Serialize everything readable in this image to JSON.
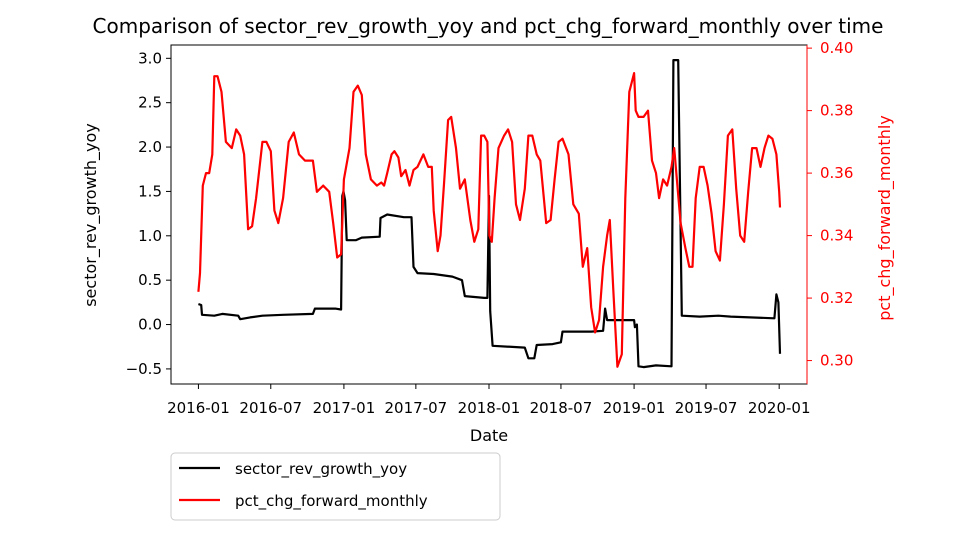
{
  "chart_data": {
    "type": "line",
    "title": "Comparison of sector_rev_growth_yoy and pct_chg_forward_monthly over time",
    "xlabel": "Date",
    "ylabel_left": "sector_rev_growth_yoy",
    "ylabel_right": "pct_chg_forward_monthly",
    "x_ticks": [
      "2016-01",
      "2016-07",
      "2017-01",
      "2017-07",
      "2018-01",
      "2018-07",
      "2019-01",
      "2019-07",
      "2020-01"
    ],
    "y_left_ticks": [
      "3.0",
      "2.5",
      "2.0",
      "1.5",
      "1.0",
      "0.5",
      "0.0",
      "−0.5"
    ],
    "y_right_ticks": [
      "0.40",
      "0.38",
      "0.36",
      "0.34",
      "0.32",
      "0.30"
    ],
    "ylim_left": [
      -0.67,
      3.15
    ],
    "ylim_right": [
      0.2925,
      0.401
    ],
    "xlim": [
      "2015-10-24",
      "2020-03-11"
    ],
    "grid": false,
    "legend_placement": "below-left",
    "colors": {
      "left": "#000000",
      "right": "#ff0000"
    },
    "series": [
      {
        "name": "sector_rev_growth_yoy",
        "axis": "left",
        "color": "#000000",
        "points": [
          [
            "2016-01-01",
            0.23
          ],
          [
            "2016-01-08",
            0.22
          ],
          [
            "2016-01-10",
            0.11
          ],
          [
            "2016-02-10",
            0.1
          ],
          [
            "2016-03-01",
            0.12
          ],
          [
            "2016-04-10",
            0.1
          ],
          [
            "2016-04-15",
            0.06
          ],
          [
            "2016-05-10",
            0.08
          ],
          [
            "2016-06-10",
            0.1
          ],
          [
            "2016-08-01",
            0.11
          ],
          [
            "2016-10-15",
            0.12
          ],
          [
            "2016-10-20",
            0.18
          ],
          [
            "2016-12-10",
            0.18
          ],
          [
            "2016-12-25",
            0.17
          ],
          [
            "2016-12-28",
            1.45
          ],
          [
            "2016-12-31",
            1.5
          ],
          [
            "2017-01-04",
            1.4
          ],
          [
            "2017-01-08",
            0.95
          ],
          [
            "2017-01-31",
            0.95
          ],
          [
            "2017-02-15",
            0.98
          ],
          [
            "2017-04-01",
            0.99
          ],
          [
            "2017-04-03",
            1.2
          ],
          [
            "2017-04-20",
            1.24
          ],
          [
            "2017-06-01",
            1.21
          ],
          [
            "2017-06-20",
            1.21
          ],
          [
            "2017-06-25",
            0.65
          ],
          [
            "2017-07-05",
            0.58
          ],
          [
            "2017-08-15",
            0.57
          ],
          [
            "2017-10-01",
            0.54
          ],
          [
            "2017-10-25",
            0.5
          ],
          [
            "2017-11-01",
            0.32
          ],
          [
            "2017-12-20",
            0.3
          ],
          [
            "2017-12-28",
            0.3
          ],
          [
            "2018-01-01",
            1.45
          ],
          [
            "2018-01-04",
            0.15
          ],
          [
            "2018-01-10",
            -0.24
          ],
          [
            "2018-04-01",
            -0.26
          ],
          [
            "2018-04-10",
            -0.38
          ],
          [
            "2018-04-25",
            -0.38
          ],
          [
            "2018-05-01",
            -0.23
          ],
          [
            "2018-06-10",
            -0.22
          ],
          [
            "2018-07-01",
            -0.2
          ],
          [
            "2018-07-05",
            -0.08
          ],
          [
            "2018-09-15",
            -0.08
          ],
          [
            "2018-10-15",
            -0.07
          ],
          [
            "2018-10-20",
            0.18
          ],
          [
            "2018-10-25",
            0.05
          ],
          [
            "2019-01-01",
            0.05
          ],
          [
            "2019-01-03",
            -0.03
          ],
          [
            "2019-01-08",
            0.0
          ],
          [
            "2019-01-12",
            -0.47
          ],
          [
            "2019-01-25",
            -0.48
          ],
          [
            "2019-02-25",
            -0.46
          ],
          [
            "2019-04-05",
            -0.47
          ],
          [
            "2019-04-10",
            2.98
          ],
          [
            "2019-04-22",
            2.98
          ],
          [
            "2019-05-01",
            0.1
          ],
          [
            "2019-06-15",
            0.09
          ],
          [
            "2019-08-01",
            0.1
          ],
          [
            "2019-09-01",
            0.09
          ],
          [
            "2019-12-20",
            0.07
          ],
          [
            "2019-12-25",
            0.34
          ],
          [
            "2019-12-30",
            0.25
          ],
          [
            "2020-01-03",
            -0.33
          ]
        ]
      },
      {
        "name": "pct_chg_forward_monthly",
        "axis": "right",
        "color": "#ff0000",
        "points": [
          [
            "2016-01-01",
            0.322
          ],
          [
            "2016-01-05",
            0.328
          ],
          [
            "2016-01-12",
            0.356
          ],
          [
            "2016-01-20",
            0.36
          ],
          [
            "2016-01-28",
            0.36
          ],
          [
            "2016-02-05",
            0.366
          ],
          [
            "2016-02-10",
            0.391
          ],
          [
            "2016-02-18",
            0.391
          ],
          [
            "2016-02-28",
            0.386
          ],
          [
            "2016-03-10",
            0.37
          ],
          [
            "2016-03-25",
            0.368
          ],
          [
            "2016-04-05",
            0.374
          ],
          [
            "2016-04-15",
            0.372
          ],
          [
            "2016-04-25",
            0.366
          ],
          [
            "2016-05-05",
            0.342
          ],
          [
            "2016-05-15",
            0.343
          ],
          [
            "2016-05-25",
            0.352
          ],
          [
            "2016-06-10",
            0.37
          ],
          [
            "2016-06-20",
            0.37
          ],
          [
            "2016-07-01",
            0.367
          ],
          [
            "2016-07-10",
            0.348
          ],
          [
            "2016-07-20",
            0.344
          ],
          [
            "2016-08-01",
            0.352
          ],
          [
            "2016-08-15",
            0.37
          ],
          [
            "2016-08-28",
            0.373
          ],
          [
            "2016-09-10",
            0.366
          ],
          [
            "2016-09-25",
            0.364
          ],
          [
            "2016-10-15",
            0.364
          ],
          [
            "2016-10-25",
            0.354
          ],
          [
            "2016-11-10",
            0.356
          ],
          [
            "2016-11-25",
            0.354
          ],
          [
            "2016-12-05",
            0.344
          ],
          [
            "2016-12-15",
            0.333
          ],
          [
            "2016-12-25",
            0.334
          ],
          [
            "2017-01-01",
            0.358
          ],
          [
            "2017-01-15",
            0.368
          ],
          [
            "2017-01-25",
            0.386
          ],
          [
            "2017-02-05",
            0.388
          ],
          [
            "2017-02-15",
            0.385
          ],
          [
            "2017-02-25",
            0.366
          ],
          [
            "2017-03-10",
            0.358
          ],
          [
            "2017-03-25",
            0.356
          ],
          [
            "2017-04-05",
            0.357
          ],
          [
            "2017-04-12",
            0.356
          ],
          [
            "2017-04-20",
            0.36
          ],
          [
            "2017-05-01",
            0.366
          ],
          [
            "2017-05-08",
            0.367
          ],
          [
            "2017-05-18",
            0.365
          ],
          [
            "2017-05-25",
            0.359
          ],
          [
            "2017-06-05",
            0.361
          ],
          [
            "2017-06-15",
            0.356
          ],
          [
            "2017-06-25",
            0.361
          ],
          [
            "2017-07-05",
            0.362
          ],
          [
            "2017-07-20",
            0.366
          ],
          [
            "2017-08-01",
            0.362
          ],
          [
            "2017-08-10",
            0.362
          ],
          [
            "2017-08-15",
            0.348
          ],
          [
            "2017-08-25",
            0.335
          ],
          [
            "2017-09-01",
            0.34
          ],
          [
            "2017-09-10",
            0.357
          ],
          [
            "2017-09-20",
            0.377
          ],
          [
            "2017-09-28",
            0.378
          ],
          [
            "2017-10-10",
            0.368
          ],
          [
            "2017-10-20",
            0.355
          ],
          [
            "2017-11-01",
            0.358
          ],
          [
            "2017-11-15",
            0.345
          ],
          [
            "2017-11-25",
            0.338
          ],
          [
            "2017-12-05",
            0.342
          ],
          [
            "2017-12-12",
            0.372
          ],
          [
            "2017-12-20",
            0.372
          ],
          [
            "2017-12-28",
            0.37
          ],
          [
            "2018-01-02",
            0.34
          ],
          [
            "2018-01-08",
            0.338
          ],
          [
            "2018-01-15",
            0.352
          ],
          [
            "2018-01-25",
            0.368
          ],
          [
            "2018-02-08",
            0.372
          ],
          [
            "2018-02-18",
            0.374
          ],
          [
            "2018-02-28",
            0.37
          ],
          [
            "2018-03-10",
            0.35
          ],
          [
            "2018-03-20",
            0.345
          ],
          [
            "2018-04-01",
            0.355
          ],
          [
            "2018-04-10",
            0.372
          ],
          [
            "2018-04-20",
            0.372
          ],
          [
            "2018-05-01",
            0.366
          ],
          [
            "2018-05-10",
            0.364
          ],
          [
            "2018-05-25",
            0.344
          ],
          [
            "2018-06-05",
            0.345
          ],
          [
            "2018-06-15",
            0.358
          ],
          [
            "2018-06-25",
            0.37
          ],
          [
            "2018-07-05",
            0.371
          ],
          [
            "2018-07-20",
            0.366
          ],
          [
            "2018-08-01",
            0.35
          ],
          [
            "2018-08-15",
            0.347
          ],
          [
            "2018-08-25",
            0.33
          ],
          [
            "2018-09-05",
            0.336
          ],
          [
            "2018-09-15",
            0.317
          ],
          [
            "2018-09-25",
            0.309
          ],
          [
            "2018-10-05",
            0.313
          ],
          [
            "2018-10-15",
            0.33
          ],
          [
            "2018-10-25",
            0.34
          ],
          [
            "2018-11-01",
            0.345
          ],
          [
            "2018-11-10",
            0.322
          ],
          [
            "2018-11-20",
            0.298
          ],
          [
            "2018-12-01",
            0.302
          ],
          [
            "2018-12-10",
            0.352
          ],
          [
            "2018-12-20",
            0.386
          ],
          [
            "2019-01-01",
            0.392
          ],
          [
            "2019-01-05",
            0.38
          ],
          [
            "2019-01-12",
            0.378
          ],
          [
            "2019-01-25",
            0.378
          ],
          [
            "2019-02-05",
            0.38
          ],
          [
            "2019-02-15",
            0.364
          ],
          [
            "2019-02-25",
            0.36
          ],
          [
            "2019-03-05",
            0.352
          ],
          [
            "2019-03-15",
            0.358
          ],
          [
            "2019-03-25",
            0.356
          ],
          [
            "2019-04-05",
            0.362
          ],
          [
            "2019-04-12",
            0.368
          ],
          [
            "2019-04-20",
            0.356
          ],
          [
            "2019-04-28",
            0.344
          ],
          [
            "2019-05-10",
            0.336
          ],
          [
            "2019-05-20",
            0.33
          ],
          [
            "2019-05-28",
            0.33
          ],
          [
            "2019-06-05",
            0.352
          ],
          [
            "2019-06-15",
            0.362
          ],
          [
            "2019-06-25",
            0.362
          ],
          [
            "2019-07-05",
            0.356
          ],
          [
            "2019-07-15",
            0.347
          ],
          [
            "2019-07-25",
            0.335
          ],
          [
            "2019-08-05",
            0.332
          ],
          [
            "2019-08-15",
            0.35
          ],
          [
            "2019-08-25",
            0.372
          ],
          [
            "2019-09-05",
            0.374
          ],
          [
            "2019-09-15",
            0.355
          ],
          [
            "2019-09-25",
            0.34
          ],
          [
            "2019-10-05",
            0.338
          ],
          [
            "2019-10-15",
            0.354
          ],
          [
            "2019-10-25",
            0.368
          ],
          [
            "2019-11-05",
            0.368
          ],
          [
            "2019-11-15",
            0.362
          ],
          [
            "2019-11-25",
            0.368
          ],
          [
            "2019-12-05",
            0.372
          ],
          [
            "2019-12-15",
            0.371
          ],
          [
            "2019-12-25",
            0.366
          ],
          [
            "2020-01-01",
            0.354
          ],
          [
            "2020-01-03",
            0.349
          ]
        ]
      }
    ]
  }
}
